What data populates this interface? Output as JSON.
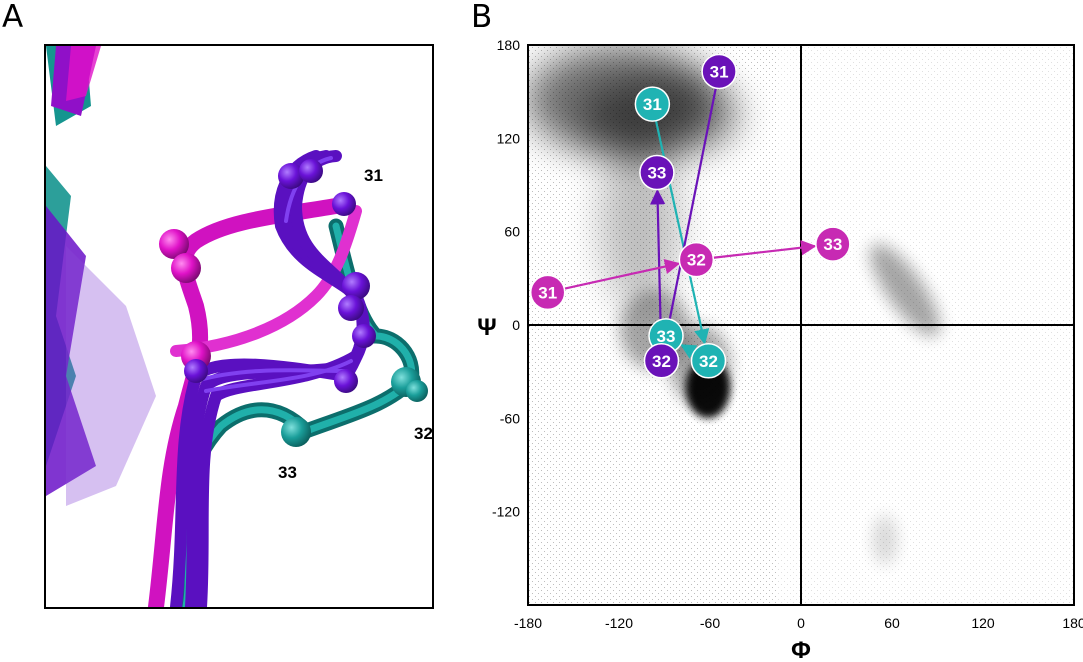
{
  "figure": {
    "panel_a_letter": "A",
    "panel_b_letter": "B"
  },
  "panel_a": {
    "residue_labels": [
      "31",
      "32",
      "33"
    ]
  },
  "chart_data": {
    "type": "scatter",
    "title": "",
    "xlabel": "Φ",
    "ylabel": "Ψ",
    "xlim": [
      -180,
      180
    ],
    "ylim": [
      -180,
      180
    ],
    "x_ticks": [
      "-180",
      "-120",
      "-60",
      "0",
      "60",
      "120",
      "180"
    ],
    "y_ticks": [
      "180",
      "120",
      "60",
      "0",
      "-60",
      "-120"
    ],
    "zero_lines": true,
    "background_points": "dense grey density of backbone dihedral angles (Ramachandran distribution)",
    "series": [
      {
        "color": "#1fb3b3",
        "points": [
          {
            "label": "31",
            "x": -98,
            "y": 142
          },
          {
            "label": "32",
            "x": -61,
            "y": -23
          },
          {
            "label": "33",
            "x": -89,
            "y": -7
          }
        ]
      },
      {
        "color": "#6a12b8",
        "points": [
          {
            "label": "31",
            "x": -54,
            "y": 163
          },
          {
            "label": "32",
            "x": -92,
            "y": -23
          },
          {
            "label": "33",
            "x": -95,
            "y": 98
          }
        ]
      },
      {
        "color": "#c72ab3",
        "points": [
          {
            "label": "31",
            "x": -167,
            "y": 21
          },
          {
            "label": "32",
            "x": -69,
            "y": 42
          },
          {
            "label": "33",
            "x": 21,
            "y": 52
          }
        ]
      }
    ]
  }
}
